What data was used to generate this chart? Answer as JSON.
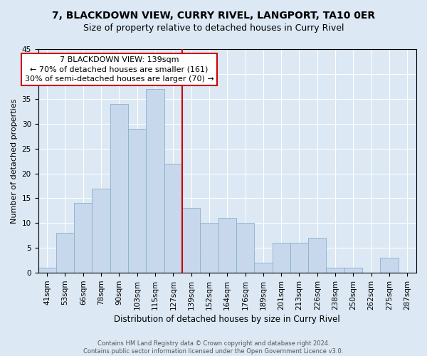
{
  "title1": "7, BLACKDOWN VIEW, CURRY RIVEL, LANGPORT, TA10 0ER",
  "title2": "Size of property relative to detached houses in Curry Rivel",
  "xlabel": "Distribution of detached houses by size in Curry Rivel",
  "ylabel": "Number of detached properties",
  "bin_labels": [
    "41sqm",
    "53sqm",
    "66sqm",
    "78sqm",
    "90sqm",
    "103sqm",
    "115sqm",
    "127sqm",
    "139sqm",
    "152sqm",
    "164sqm",
    "176sqm",
    "189sqm",
    "201sqm",
    "213sqm",
    "226sqm",
    "238sqm",
    "250sqm",
    "262sqm",
    "275sqm",
    "287sqm"
  ],
  "bar_values": [
    1,
    8,
    14,
    17,
    34,
    29,
    37,
    22,
    13,
    10,
    11,
    10,
    2,
    6,
    6,
    7,
    1,
    1,
    0,
    3,
    0
  ],
  "bar_color": "#c8d8ec",
  "bar_edge_color": "#8ab0cc",
  "vline_index": 8,
  "vline_color": "#cc0000",
  "annotation_line1": "7 BLACKDOWN VIEW: 139sqm",
  "annotation_line2": "← 70% of detached houses are smaller (161)",
  "annotation_line3": "30% of semi-detached houses are larger (70) →",
  "annotation_box_color": "#ffffff",
  "annotation_box_edge": "#cc0000",
  "ylim": [
    0,
    45
  ],
  "yticks": [
    0,
    5,
    10,
    15,
    20,
    25,
    30,
    35,
    40,
    45
  ],
  "bg_color": "#dce8f4",
  "grid_color": "#ffffff",
  "footer1": "Contains HM Land Registry data © Crown copyright and database right 2024.",
  "footer2": "Contains public sector information licensed under the Open Government Licence v3.0.",
  "title1_fontsize": 10,
  "title2_fontsize": 9,
  "xlabel_fontsize": 8.5,
  "ylabel_fontsize": 8,
  "tick_fontsize": 7.5,
  "ann_fontsize": 8,
  "footer_fontsize": 6
}
